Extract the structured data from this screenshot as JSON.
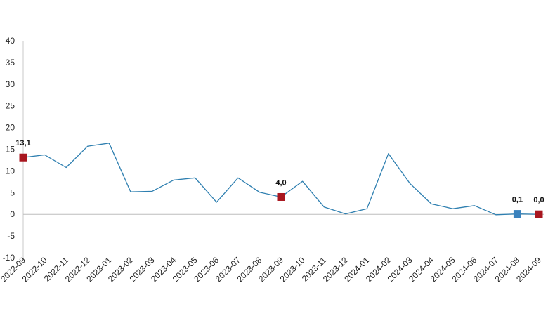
{
  "chart_data": {
    "type": "line",
    "title": "",
    "xlabel": "",
    "ylabel": "",
    "ylim": [
      -10,
      40
    ],
    "yticks": [
      "40",
      "35",
      "30",
      "25",
      "20",
      "15",
      "10",
      "5",
      "0",
      "-5",
      "-10"
    ],
    "yticks_values": [
      40,
      35,
      30,
      25,
      20,
      15,
      10,
      5,
      0,
      -5,
      -10
    ],
    "categories": [
      "2022-09",
      "2022-10",
      "2022-11",
      "2022-12",
      "2023-01",
      "2023-02",
      "2023-03",
      "2023-04",
      "2023-05",
      "2023-06",
      "2023-07",
      "2023-08",
      "2023-09",
      "2023-10",
      "2023-11",
      "2023-12",
      "2024-01",
      "2024-02",
      "2024-03",
      "2024-04",
      "2024-05",
      "2024-06",
      "2024-07",
      "2024-08",
      "2024-09"
    ],
    "series": [
      {
        "values": [
          13.1,
          13.7,
          10.8,
          15.7,
          16.4,
          5.2,
          5.3,
          7.9,
          8.4,
          2.8,
          8.4,
          5.1,
          4.0,
          7.6,
          1.7,
          0.1,
          1.3,
          14.0,
          7.1,
          2.4,
          1.3,
          2.0,
          -0.1,
          0.1,
          0.0
        ],
        "color": "#2e7fb0"
      }
    ],
    "highlights": [
      {
        "category": "2022-09",
        "label": "13,1",
        "color": "#a8161f"
      },
      {
        "category": "2023-09",
        "label": "4,0",
        "color": "#a8161f"
      },
      {
        "category": "2024-08",
        "label": "0,1",
        "color": "#3a82bd"
      },
      {
        "category": "2024-09",
        "label": "0,0",
        "color": "#a8161f"
      }
    ],
    "grid": false,
    "legend": "none"
  }
}
